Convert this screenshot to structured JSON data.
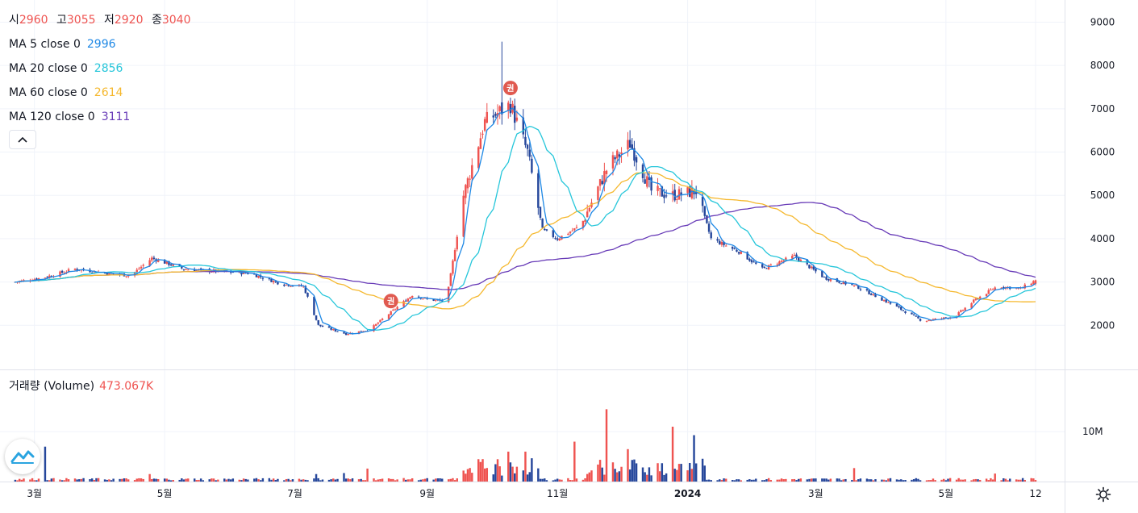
{
  "legend": {
    "ohlc": [
      {
        "label": "시",
        "value": "2960"
      },
      {
        "label": "고",
        "value": "3055"
      },
      {
        "label": "저",
        "value": "2920"
      },
      {
        "label": "종",
        "value": "3040"
      }
    ],
    "ma": [
      {
        "label": "MA 5 close 0",
        "value": "2996",
        "color": "#1e88e5"
      },
      {
        "label": "MA 20 close 0",
        "value": "2856",
        "color": "#26c6da"
      },
      {
        "label": "MA 60 close 0",
        "value": "2614",
        "color": "#f5b82e"
      },
      {
        "label": "MA 120 close 0",
        "value": "3111",
        "color": "#673ab7"
      }
    ],
    "volume_label": "거래량 (Volume)",
    "volume_value": "473.067K"
  },
  "icons": {
    "collapse": "chevron-up-icon",
    "logo": "tradingview-logo-icon",
    "settings": "gear-icon",
    "event_marker": "권"
  },
  "colors": {
    "up": "#ef5350",
    "down": "#26479b",
    "grid": "#f0f3fa",
    "ma5": "#1e88e5",
    "ma20": "#26c6da",
    "ma60": "#f5b82e",
    "ma120": "#673ab7",
    "marker": "#e05a50"
  },
  "chart_data": {
    "type": "candlestick",
    "price_axis": {
      "ticks": [
        2000,
        3000,
        4000,
        5000,
        6000,
        7000,
        8000,
        9000
      ],
      "range": [
        1000,
        9400
      ]
    },
    "volume_axis": {
      "ticks": [
        {
          "value": 10000000,
          "label": "10M"
        }
      ],
      "range": [
        0,
        22000000
      ]
    },
    "time_axis": {
      "labels": [
        {
          "label": "3월",
          "date": "2023-03-01"
        },
        {
          "label": "5월",
          "date": "2023-05-01"
        },
        {
          "label": "7월",
          "date": "2023-07-01"
        },
        {
          "label": "9월",
          "date": "2023-09-01"
        },
        {
          "label": "11월",
          "date": "2023-11-01"
        },
        {
          "label": "2024",
          "date": "2024-01-01",
          "bold": true
        },
        {
          "label": "3월",
          "date": "2024-03-01"
        },
        {
          "label": "5월",
          "date": "2024-05-01"
        },
        {
          "label": "12",
          "date": "2024-06-12"
        }
      ]
    },
    "price_path": [
      [
        "2023-02-20",
        3000
      ],
      [
        "2023-03-05",
        3100
      ],
      [
        "2023-03-20",
        3300
      ],
      [
        "2023-04-05",
        3200
      ],
      [
        "2023-04-15",
        3150
      ],
      [
        "2023-04-25",
        3550
      ],
      [
        "2023-05-10",
        3300
      ],
      [
        "2023-05-25",
        3250
      ],
      [
        "2023-06-10",
        3200
      ],
      [
        "2023-06-25",
        2950
      ],
      [
        "2023-07-05",
        2900
      ],
      [
        "2023-07-12",
        2000
      ],
      [
        "2023-07-25",
        1800
      ],
      [
        "2023-08-05",
        1900
      ],
      [
        "2023-08-15",
        2300
      ],
      [
        "2023-08-25",
        2700
      ],
      [
        "2023-09-01",
        2600
      ],
      [
        "2023-09-10",
        2550
      ],
      [
        "2023-09-18",
        5000
      ],
      [
        "2023-09-28",
        6700
      ],
      [
        "2023-10-10",
        7100
      ],
      [
        "2023-10-18",
        6000
      ],
      [
        "2023-10-25",
        4200
      ],
      [
        "2023-11-01",
        4000
      ],
      [
        "2023-11-12",
        4300
      ],
      [
        "2023-11-25",
        5700
      ],
      [
        "2023-12-05",
        6200
      ],
      [
        "2023-12-15",
        5100
      ],
      [
        "2023-12-25",
        5000
      ],
      [
        "2024-01-05",
        5100
      ],
      [
        "2024-01-12",
        4000
      ],
      [
        "2024-01-25",
        3700
      ],
      [
        "2024-02-05",
        3300
      ],
      [
        "2024-02-20",
        3600
      ],
      [
        "2024-03-05",
        3100
      ],
      [
        "2024-03-20",
        2900
      ],
      [
        "2024-04-05",
        2500
      ],
      [
        "2024-04-20",
        2100
      ],
      [
        "2024-05-05",
        2200
      ],
      [
        "2024-05-15",
        2600
      ],
      [
        "2024-05-25",
        2900
      ],
      [
        "2024-06-05",
        2850
      ],
      [
        "2024-06-12",
        3040
      ]
    ],
    "volume_spikes": [
      {
        "date": "2023-03-05",
        "value": 7000000,
        "up": false
      },
      {
        "date": "2023-04-25",
        "value": 1500000,
        "up": true
      },
      {
        "date": "2023-07-12",
        "value": 1500000,
        "up": false
      },
      {
        "date": "2023-07-25",
        "value": 1700000,
        "up": false
      },
      {
        "date": "2023-08-05",
        "value": 2600000,
        "up": true
      },
      {
        "date": "2023-09-18",
        "value": 2200000,
        "up": true
      },
      {
        "date": "2023-09-28",
        "value": 4500000,
        "up": true
      },
      {
        "date": "2023-10-10",
        "value": 6000000,
        "up": true
      },
      {
        "date": "2023-10-18",
        "value": 6000000,
        "up": true
      },
      {
        "date": "2023-11-10",
        "value": 8000000,
        "up": true
      },
      {
        "date": "2023-11-25",
        "value": 14500000,
        "up": true
      },
      {
        "date": "2023-12-05",
        "value": 6500000,
        "up": true
      },
      {
        "date": "2023-12-25",
        "value": 11000000,
        "up": true
      },
      {
        "date": "2024-01-05",
        "value": 9300000,
        "up": false
      },
      {
        "date": "2024-03-20",
        "value": 2700000,
        "up": true
      },
      {
        "date": "2024-05-25",
        "value": 1600000,
        "up": true
      }
    ],
    "events": [
      {
        "date": "2023-08-15",
        "label": "권"
      },
      {
        "date": "2023-10-10",
        "label": "권"
      }
    ],
    "last": {
      "open": 2960,
      "high": 3055,
      "low": 2920,
      "close": 3040
    }
  }
}
